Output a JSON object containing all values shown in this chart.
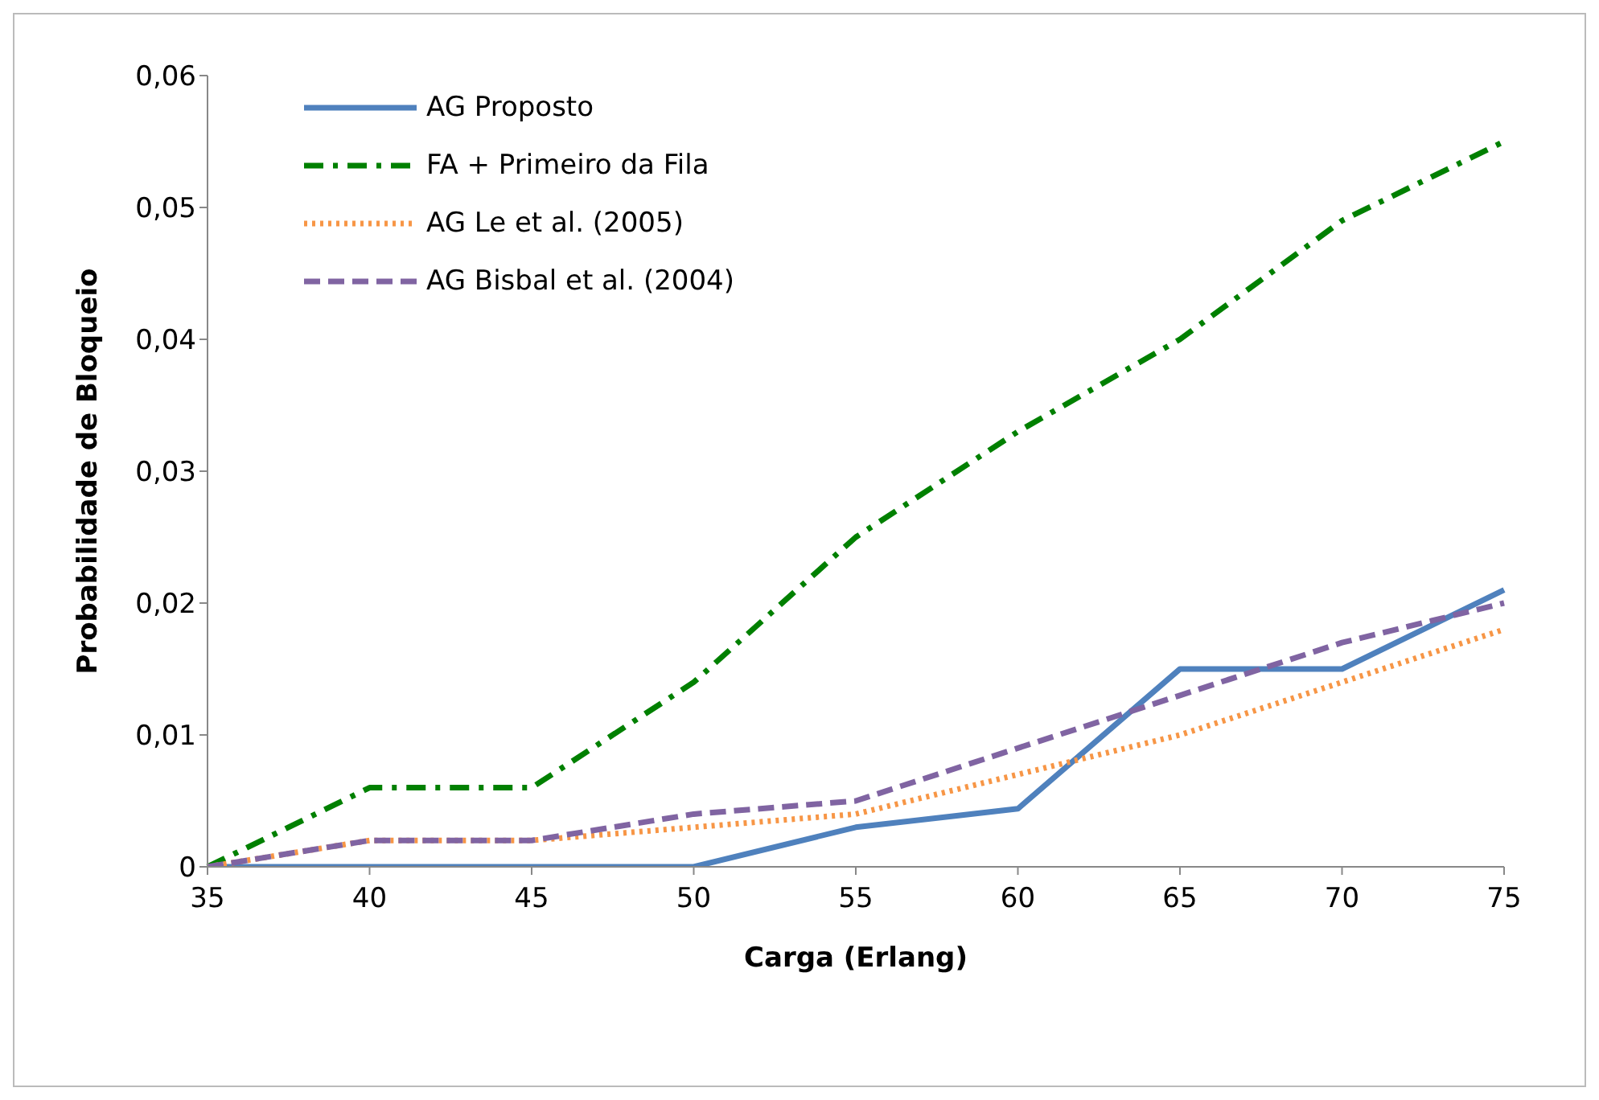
{
  "chart_data": {
    "type": "line",
    "xlabel": "Carga (Erlang)",
    "ylabel": "Probabilidade de Bloqueio",
    "categories": [
      "35",
      "40",
      "45",
      "50",
      "55",
      "60",
      "65",
      "70",
      "75"
    ],
    "ylim": [
      0,
      0.06
    ],
    "yticks": [
      0,
      {
        "value": 0.01,
        "label": "0,01"
      },
      {
        "value": 0.02,
        "label": "0,02"
      },
      {
        "value": 0.03,
        "label": "0,03"
      },
      {
        "value": 0.04,
        "label": "0,04"
      },
      {
        "value": 0.05,
        "label": "0,05"
      },
      {
        "value": 0.06,
        "label": "0,06"
      }
    ],
    "grid": false,
    "legend": "top left",
    "marker": "none",
    "series": [
      {
        "name": "AG Proposto",
        "color": "#4f81bd",
        "line_style": "solid",
        "values": [
          0,
          0,
          0,
          0,
          0.003,
          0.0044,
          0.015,
          0.015,
          0.021
        ]
      },
      {
        "name": "FA + Primeiro da Fila",
        "color": "#008000",
        "line_style": "dashdot",
        "values": [
          0,
          0.006,
          0.006,
          0.014,
          0.025,
          0.033,
          0.04,
          0.049,
          0.055
        ]
      },
      {
        "name": "AG Le et al. (2005)",
        "color": "#f79646",
        "line_style": "dotted",
        "values": [
          0,
          0.002,
          0.002,
          0.003,
          0.004,
          0.007,
          0.01,
          0.014,
          0.018
        ]
      },
      {
        "name": "AG Bisbal et al. (2004)",
        "color": "#8064a2",
        "line_style": "dashed",
        "values": [
          0,
          0.002,
          0.002,
          0.004,
          0.005,
          0.009,
          0.013,
          0.017,
          0.02
        ]
      }
    ]
  }
}
